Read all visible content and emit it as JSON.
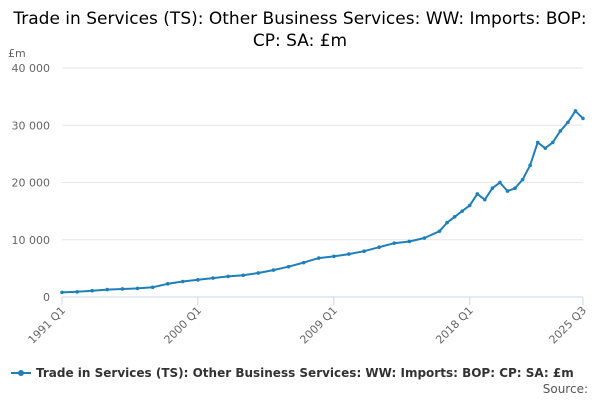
{
  "colors": {
    "series": "#1f7fb8",
    "grid": "#e6e6e6",
    "axis": "#ccd6eb",
    "text": "#666666"
  },
  "chart_data": {
    "type": "line",
    "title": "Trade in Services (TS): Other Business Services: WW: Imports: BOP: CP: SA: £m",
    "ylabel": "£m",
    "xlabel": "",
    "ylim": [
      0,
      40000
    ],
    "y_ticks": [
      0,
      10000,
      20000,
      30000,
      40000
    ],
    "y_tick_labels": [
      "0",
      "10 000",
      "20 000",
      "30 000",
      "40 000"
    ],
    "x_tick_labels": [
      "1991 Q1",
      "2000 Q1",
      "2009 Q1",
      "2018 Q1",
      "2025 Q3"
    ],
    "x_range": [
      "1991 Q1",
      "2025 Q3"
    ],
    "grid": true,
    "legend_position": "bottom",
    "source_label": "Source:",
    "series": [
      {
        "name": "Trade in Services (TS): Other Business Services: WW: Imports: BOP: CP: SA: £m",
        "points": [
          [
            "1991 Q1",
            800
          ],
          [
            "1992 Q1",
            900
          ],
          [
            "1993 Q1",
            1100
          ],
          [
            "1994 Q1",
            1300
          ],
          [
            "1995 Q1",
            1400
          ],
          [
            "1996 Q1",
            1500
          ],
          [
            "1997 Q1",
            1700
          ],
          [
            "1998 Q1",
            2300
          ],
          [
            "1999 Q1",
            2700
          ],
          [
            "2000 Q1",
            3000
          ],
          [
            "2001 Q1",
            3300
          ],
          [
            "2002 Q1",
            3600
          ],
          [
            "2003 Q1",
            3800
          ],
          [
            "2004 Q1",
            4200
          ],
          [
            "2005 Q1",
            4700
          ],
          [
            "2006 Q1",
            5300
          ],
          [
            "2007 Q1",
            6000
          ],
          [
            "2008 Q1",
            6800
          ],
          [
            "2009 Q1",
            7100
          ],
          [
            "2010 Q1",
            7500
          ],
          [
            "2011 Q1",
            8000
          ],
          [
            "2012 Q1",
            8700
          ],
          [
            "2013 Q1",
            9400
          ],
          [
            "2014 Q1",
            9700
          ],
          [
            "2015 Q1",
            10300
          ],
          [
            "2016 Q1",
            11500
          ],
          [
            "2016 Q3",
            13000
          ],
          [
            "2017 Q1",
            14000
          ],
          [
            "2017 Q3",
            15000
          ],
          [
            "2018 Q1",
            16000
          ],
          [
            "2018 Q3",
            18000
          ],
          [
            "2019 Q1",
            17000
          ],
          [
            "2019 Q3",
            19000
          ],
          [
            "2020 Q1",
            20000
          ],
          [
            "2020 Q3",
            18500
          ],
          [
            "2021 Q1",
            19000
          ],
          [
            "2021 Q3",
            20500
          ],
          [
            "2022 Q1",
            23000
          ],
          [
            "2022 Q3",
            27000
          ],
          [
            "2023 Q1",
            26000
          ],
          [
            "2023 Q3",
            27000
          ],
          [
            "2024 Q1",
            29000
          ],
          [
            "2024 Q3",
            30500
          ],
          [
            "2025 Q1",
            32500
          ],
          [
            "2025 Q3",
            31200
          ]
        ]
      }
    ]
  }
}
